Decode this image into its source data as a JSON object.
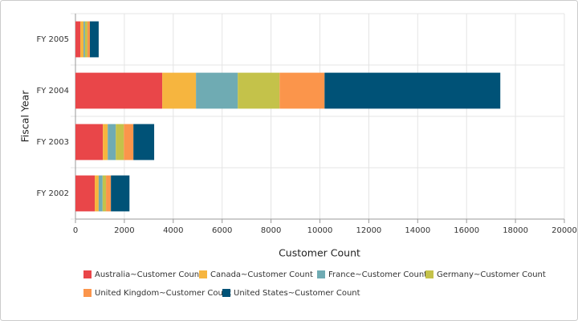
{
  "chart_data": {
    "type": "stacked-bar-horizontal",
    "y_axis_title": "Fiscal Year",
    "x_axis_title": "Customer Count",
    "categories": [
      "FY 2002",
      "FY 2003",
      "FY 2004",
      "FY 2005"
    ],
    "series": [
      {
        "name": "Australia~Customer Count",
        "color": "#e94649",
        "values": [
          790,
          1120,
          3550,
          200
        ]
      },
      {
        "name": "Canada~Customer Count",
        "color": "#f6b53f",
        "values": [
          160,
          200,
          1380,
          130
        ]
      },
      {
        "name": "France~Customer Count",
        "color": "#6fabb3",
        "values": [
          160,
          330,
          1710,
          60
        ]
      },
      {
        "name": "Germany~Customer Count",
        "color": "#c4c24a",
        "values": [
          140,
          330,
          1710,
          100
        ]
      },
      {
        "name": "United Kingdom~Customer Count",
        "color": "#fb954b",
        "values": [
          200,
          390,
          1840,
          100
        ]
      },
      {
        "name": "United States~Customer Count",
        "color": "#005277",
        "values": [
          760,
          850,
          7190,
          360
        ]
      }
    ],
    "xlim": [
      0,
      20000
    ],
    "xticks": [
      0,
      2000,
      4000,
      6000,
      8000,
      10000,
      12000,
      14000,
      16000,
      18000,
      20000
    ],
    "grid": true
  }
}
